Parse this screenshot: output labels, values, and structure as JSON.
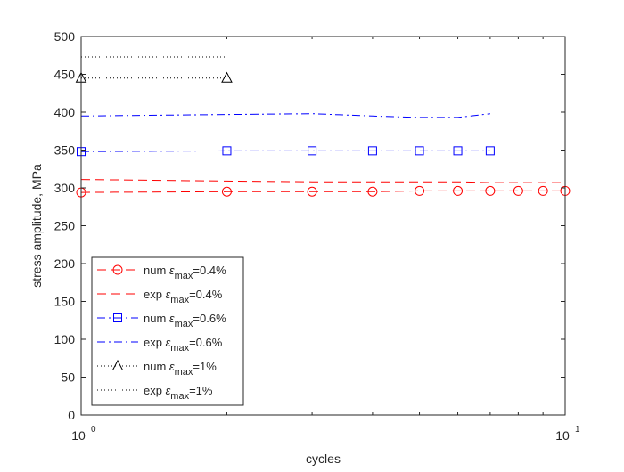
{
  "chart_data": {
    "type": "line",
    "xlabel": "cycles",
    "ylabel": "stress amplitude, MPa",
    "xscale": "log",
    "xlim": [
      1,
      10
    ],
    "ylim": [
      0,
      500
    ],
    "xticks": [
      {
        "value": 1,
        "base": "10",
        "exp": "0"
      },
      {
        "value": 10,
        "base": "10",
        "exp": "1"
      }
    ],
    "yticks": [
      0,
      50,
      100,
      150,
      200,
      250,
      300,
      350,
      400,
      450,
      500
    ],
    "grid": false,
    "legend_position": "bottom-left",
    "colors": {
      "red": "#ff0000",
      "blue": "#0000ff",
      "black": "#000000"
    },
    "series": [
      {
        "legend": {
          "prefix": "num ",
          "symbol": "ε",
          "sub": "max",
          "suffix": "=0.4%"
        },
        "color": "red",
        "dash": "dashed",
        "marker": "circle",
        "x": [
          1,
          2,
          3,
          4,
          5,
          6,
          7,
          8,
          9,
          10
        ],
        "y": [
          294,
          295,
          295,
          295,
          296,
          296,
          296,
          296,
          296,
          296
        ]
      },
      {
        "legend": {
          "prefix": "exp ",
          "symbol": "ε",
          "sub": "max",
          "suffix": "=0.4%"
        },
        "color": "red",
        "dash": "dashed",
        "marker": "none",
        "x": [
          1,
          2,
          3,
          4,
          5,
          6,
          7,
          8,
          9,
          10
        ],
        "y": [
          311,
          309,
          308,
          308,
          308,
          308,
          307,
          307,
          307,
          307
        ]
      },
      {
        "legend": {
          "prefix": "num ",
          "symbol": "ε",
          "sub": "max",
          "suffix": "=0.6%"
        },
        "color": "blue",
        "dash": "dashdot",
        "marker": "square",
        "x": [
          1,
          2,
          3,
          4,
          5,
          6,
          7
        ],
        "y": [
          348,
          349,
          349,
          349,
          349,
          349,
          349
        ]
      },
      {
        "legend": {
          "prefix": "exp ",
          "symbol": "ε",
          "sub": "max",
          "suffix": "=0.6%"
        },
        "color": "blue",
        "dash": "dashdot",
        "marker": "none",
        "x": [
          1,
          2,
          3,
          4,
          5,
          6,
          7
        ],
        "y": [
          395,
          397,
          398,
          395,
          393,
          393,
          398
        ]
      },
      {
        "legend": {
          "prefix": "num ",
          "symbol": "ε",
          "sub": "max",
          "suffix": "=1%"
        },
        "color": "black",
        "dash": "dotted",
        "marker": "triangle",
        "x": [
          1,
          2
        ],
        "y": [
          445,
          445
        ]
      },
      {
        "legend": {
          "prefix": "exp ",
          "symbol": "ε",
          "sub": "max",
          "suffix": "=1%"
        },
        "color": "black",
        "dash": "dotted",
        "marker": "none",
        "x": [
          1,
          2
        ],
        "y": [
          473,
          473
        ]
      }
    ]
  }
}
